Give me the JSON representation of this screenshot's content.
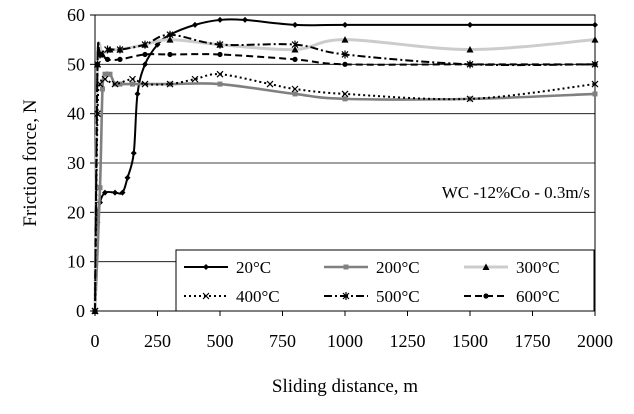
{
  "chart_data": {
    "type": "line",
    "xlabel": "Sliding distance, m",
    "ylabel": "Friction force, N",
    "annotation": "WC -12%Co - 0.3m/s",
    "xlim": [
      0,
      2000
    ],
    "ylim": [
      0,
      60
    ],
    "xticks": [
      0,
      250,
      500,
      750,
      1000,
      1250,
      1500,
      1750,
      2000
    ],
    "yticks": [
      0,
      10,
      20,
      30,
      40,
      50,
      60
    ],
    "grid": "horizontal",
    "legend_position": "bottom-right",
    "series": [
      {
        "name": "20°C",
        "color": "#000000",
        "dash": "solid",
        "marker": "diamond",
        "points": [
          [
            0,
            0
          ],
          [
            10,
            18
          ],
          [
            20,
            22
          ],
          [
            40,
            24
          ],
          [
            80,
            24
          ],
          [
            110,
            24
          ],
          [
            130,
            27
          ],
          [
            155,
            32
          ],
          [
            170,
            44
          ],
          [
            200,
            50
          ],
          [
            250,
            54
          ],
          [
            300,
            56
          ],
          [
            400,
            58
          ],
          [
            500,
            59
          ],
          [
            600,
            59
          ],
          [
            800,
            58
          ],
          [
            1000,
            58
          ],
          [
            1500,
            58
          ],
          [
            2000,
            58
          ]
        ]
      },
      {
        "name": "200°C",
        "color": "#808080",
        "dash": "solid",
        "marker": "square",
        "points": [
          [
            0,
            0
          ],
          [
            20,
            25
          ],
          [
            30,
            45
          ],
          [
            40,
            48
          ],
          [
            60,
            48
          ],
          [
            80,
            46
          ],
          [
            100,
            46
          ],
          [
            150,
            46
          ],
          [
            300,
            46
          ],
          [
            500,
            46
          ],
          [
            800,
            44
          ],
          [
            1000,
            43
          ],
          [
            1500,
            43
          ],
          [
            2000,
            44
          ]
        ]
      },
      {
        "name": "300°C",
        "color": "#cccccc",
        "dash": "solid",
        "marker": "triangle",
        "points": [
          [
            0,
            0
          ],
          [
            10,
            50
          ],
          [
            30,
            52
          ],
          [
            60,
            53
          ],
          [
            100,
            53
          ],
          [
            200,
            54
          ],
          [
            300,
            55
          ],
          [
            500,
            54
          ],
          [
            800,
            53
          ],
          [
            1000,
            55
          ],
          [
            1500,
            53
          ],
          [
            2000,
            55
          ]
        ]
      },
      {
        "name": "400°C",
        "color": "#000000",
        "dash": "dotted",
        "marker": "x",
        "points": [
          [
            0,
            0
          ],
          [
            10,
            40
          ],
          [
            20,
            46
          ],
          [
            40,
            47
          ],
          [
            80,
            46
          ],
          [
            150,
            47
          ],
          [
            200,
            46
          ],
          [
            300,
            46
          ],
          [
            400,
            47
          ],
          [
            500,
            48
          ],
          [
            700,
            46
          ],
          [
            800,
            45
          ],
          [
            1000,
            44
          ],
          [
            1500,
            43
          ],
          [
            2000,
            46
          ]
        ]
      },
      {
        "name": "500°C",
        "color": "#000000",
        "dash": "dashdot",
        "marker": "star",
        "points": [
          [
            0,
            0
          ],
          [
            10,
            50
          ],
          [
            20,
            52
          ],
          [
            50,
            53
          ],
          [
            100,
            53
          ],
          [
            200,
            54
          ],
          [
            300,
            56
          ],
          [
            500,
            54
          ],
          [
            800,
            54
          ],
          [
            1000,
            52
          ],
          [
            1500,
            50
          ],
          [
            2000,
            50
          ]
        ]
      },
      {
        "name": "600°C",
        "color": "#000000",
        "dash": "dashed",
        "marker": "circle",
        "points": [
          [
            0,
            0
          ],
          [
            10,
            50
          ],
          [
            20,
            52
          ],
          [
            50,
            51
          ],
          [
            100,
            51
          ],
          [
            200,
            52
          ],
          [
            300,
            52
          ],
          [
            500,
            52
          ],
          [
            800,
            51
          ],
          [
            1000,
            50
          ],
          [
            1500,
            50
          ],
          [
            2000,
            50
          ]
        ]
      }
    ]
  }
}
